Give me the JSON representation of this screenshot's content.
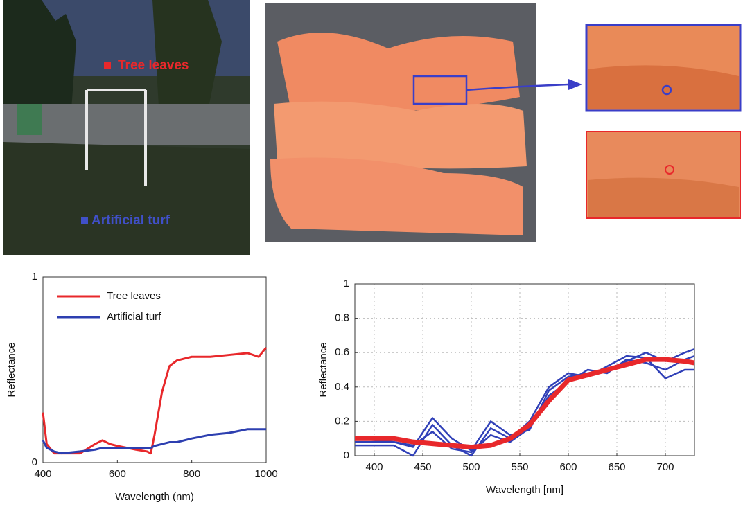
{
  "images": {
    "field_labels": [
      "Tree leaves",
      "Artificial turf"
    ]
  },
  "chart_data": [
    {
      "type": "line",
      "xlabel": "Wavelength (nm)",
      "ylabel": "Reflectance",
      "x": [
        400,
        410,
        430,
        450,
        500,
        540,
        560,
        580,
        600,
        650,
        680,
        690,
        700,
        720,
        740,
        760,
        800,
        850,
        900,
        950,
        980,
        1000
      ],
      "series": [
        {
          "name": "Tree leaves",
          "color": "#e8282b",
          "values": [
            0.27,
            0.1,
            0.05,
            0.05,
            0.05,
            0.1,
            0.12,
            0.1,
            0.09,
            0.07,
            0.06,
            0.05,
            0.15,
            0.38,
            0.52,
            0.55,
            0.57,
            0.57,
            0.58,
            0.59,
            0.57,
            0.62
          ]
        },
        {
          "name": "Artificial turf",
          "color": "#2d3fb0",
          "values": [
            0.12,
            0.08,
            0.06,
            0.05,
            0.06,
            0.07,
            0.08,
            0.08,
            0.08,
            0.08,
            0.08,
            0.08,
            0.09,
            0.1,
            0.11,
            0.11,
            0.13,
            0.15,
            0.16,
            0.18,
            0.18,
            0.18
          ]
        }
      ],
      "xlim": [
        400,
        1000
      ],
      "xticks": [
        400,
        600,
        800,
        1000
      ],
      "ylim": [
        0,
        1
      ],
      "yticks": [
        0,
        1
      ],
      "grid": false,
      "legend": "upper left"
    },
    {
      "type": "line",
      "xlabel": "Wavelength [nm]",
      "ylabel": "Reflectance",
      "x": [
        380,
        400,
        420,
        440,
        460,
        480,
        500,
        520,
        540,
        560,
        580,
        600,
        620,
        640,
        660,
        680,
        700,
        720,
        730
      ],
      "series": [
        {
          "color": "#3040b8",
          "values": [
            0.08,
            0.08,
            0.08,
            0.05,
            0.22,
            0.1,
            0.03,
            0.2,
            0.12,
            0.15,
            0.38,
            0.46,
            0.48,
            0.5,
            0.55,
            0.6,
            0.55,
            0.6,
            0.62
          ]
        },
        {
          "color": "#3040b8",
          "values": [
            0.06,
            0.06,
            0.06,
            0.0,
            0.18,
            0.06,
            0.0,
            0.16,
            0.1,
            0.2,
            0.4,
            0.48,
            0.46,
            0.52,
            0.58,
            0.57,
            0.45,
            0.5,
            0.5
          ]
        },
        {
          "color": "#3040b8",
          "values": [
            0.1,
            0.09,
            0.08,
            0.06,
            0.14,
            0.04,
            0.02,
            0.12,
            0.08,
            0.16,
            0.35,
            0.43,
            0.5,
            0.48,
            0.56,
            0.54,
            0.5,
            0.56,
            0.58
          ]
        },
        {
          "color": "#e8282b",
          "values": [
            0.1,
            0.1,
            0.1,
            0.08,
            0.07,
            0.06,
            0.05,
            0.06,
            0.1,
            0.18,
            0.32,
            0.44,
            0.47,
            0.5,
            0.53,
            0.56,
            0.56,
            0.55,
            0.54
          ]
        }
      ],
      "xlim": [
        380,
        730
      ],
      "xticks": [
        400,
        450,
        500,
        550,
        600,
        650,
        700
      ],
      "ylim": [
        0,
        1
      ],
      "yticks": [
        0,
        0.2,
        0.4,
        0.6,
        0.8,
        1
      ],
      "grid": true
    }
  ]
}
